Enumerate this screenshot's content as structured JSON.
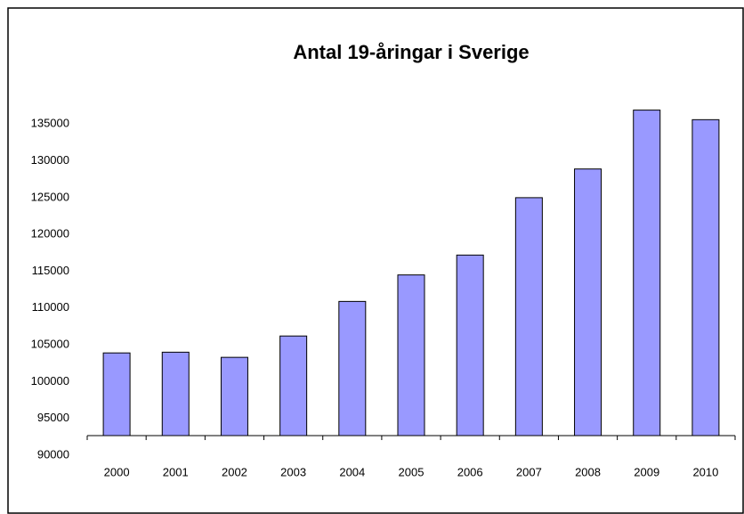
{
  "chart_data": {
    "type": "bar",
    "title": "Antal 19-åringar i Sverige",
    "categories": [
      "2000",
      "2001",
      "2002",
      "2003",
      "2004",
      "2005",
      "2006",
      "2007",
      "2008",
      "2009",
      "2010"
    ],
    "values": [
      103900,
      104000,
      103300,
      106200,
      110900,
      114500,
      117200,
      125000,
      128900,
      136900,
      135600
    ],
    "color": "#9999ff",
    "ylim": [
      90000,
      140000
    ],
    "yticks": [
      90000,
      95000,
      100000,
      105000,
      110000,
      115000,
      120000,
      125000,
      130000,
      135000
    ],
    "grid": false
  }
}
